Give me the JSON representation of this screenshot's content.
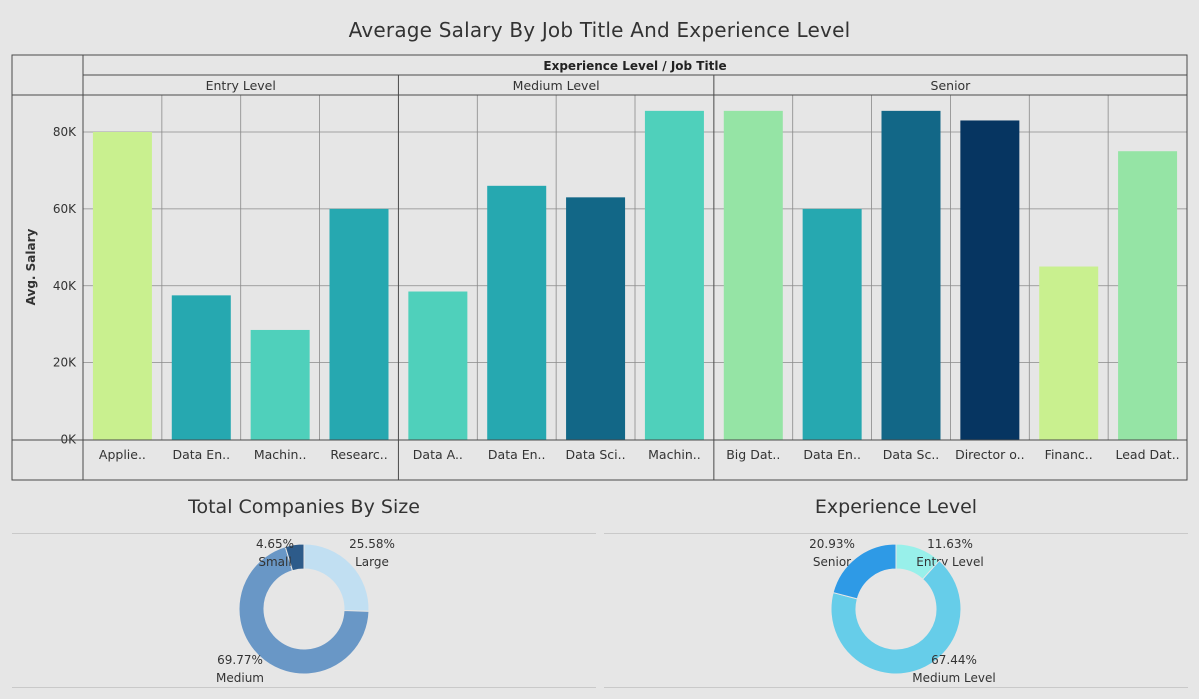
{
  "colors": {
    "c_lime": "#c9f08f",
    "c_teal": "#26a8b0",
    "c_aqua": "#4fd0bb",
    "c_blue": "#126787",
    "c_mint": "#95e4a5",
    "c_navy": "#063561",
    "donut1": [
      "#c1dff2",
      "#6997c6",
      "#2d5b8a"
    ],
    "donut2": [
      "#98f0ea",
      "#66cde9",
      "#2e9ae6"
    ]
  },
  "chart_data": [
    {
      "type": "bar",
      "title": "Average Salary By Job Title And Experience Level",
      "header": "Experience Level  /  Job Title",
      "ylabel": "Avg. Salary",
      "ylim": [
        0,
        88000
      ],
      "yticks": [
        "0K",
        "20K",
        "40K",
        "60K",
        "80K"
      ],
      "ytick_values": [
        0,
        20000,
        40000,
        60000,
        80000
      ],
      "groups": [
        {
          "name": "Entry Level",
          "bars": [
            {
              "label": "Applie..",
              "value": 80000,
              "color": "c_lime"
            },
            {
              "label": "Data En..",
              "value": 37500,
              "color": "c_teal"
            },
            {
              "label": "Machin..",
              "value": 28500,
              "color": "c_aqua"
            },
            {
              "label": "Researc..",
              "value": 60000,
              "color": "c_teal"
            }
          ]
        },
        {
          "name": "Medium Level",
          "bars": [
            {
              "label": "Data A..",
              "value": 38500,
              "color": "c_aqua"
            },
            {
              "label": "Data En..",
              "value": 66000,
              "color": "c_teal"
            },
            {
              "label": "Data Sci..",
              "value": 63000,
              "color": "c_blue"
            },
            {
              "label": "Machin..",
              "value": 85500,
              "color": "c_aqua"
            }
          ]
        },
        {
          "name": "Senior",
          "bars": [
            {
              "label": "Big Dat..",
              "value": 85500,
              "color": "c_mint"
            },
            {
              "label": "Data En..",
              "value": 60000,
              "color": "c_teal"
            },
            {
              "label": "Data Sc..",
              "value": 85500,
              "color": "c_blue"
            },
            {
              "label": "Director o..",
              "value": 83000,
              "color": "c_navy"
            },
            {
              "label": "Financ..",
              "value": 45000,
              "color": "c_lime"
            },
            {
              "label": "Lead Dat..",
              "value": 75000,
              "color": "c_mint"
            }
          ]
        }
      ]
    },
    {
      "type": "pie",
      "title": "Total Companies By Size",
      "slices": [
        {
          "label": "Large",
          "pct": "25.58%",
          "value": 25.58
        },
        {
          "label": "Medium",
          "pct": "69.77%",
          "value": 69.77
        },
        {
          "label": "Small",
          "pct": "4.65%",
          "value": 4.65
        }
      ]
    },
    {
      "type": "pie",
      "title": "Experience Level",
      "slices": [
        {
          "label": "Entry Level",
          "pct": "11.63%",
          "value": 11.63
        },
        {
          "label": "Medium Level",
          "pct": "67.44%",
          "value": 67.44
        },
        {
          "label": "Senior",
          "pct": "20.93%",
          "value": 20.93
        }
      ]
    }
  ]
}
